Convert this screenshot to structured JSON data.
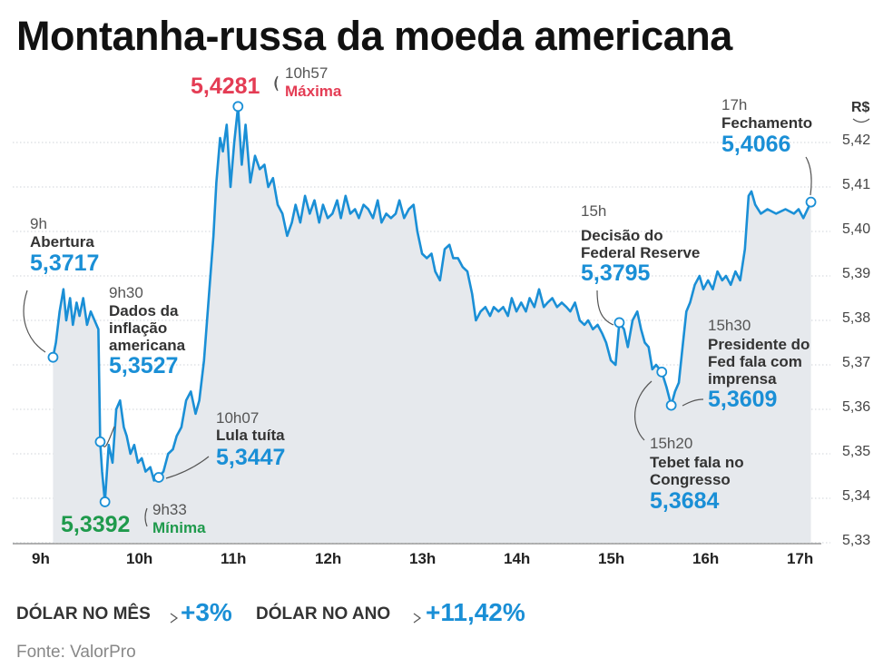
{
  "title": "Montanha-russa da moeda americana",
  "colors": {
    "line": "#1a8fd6",
    "fill": "#e6e9ed",
    "max": "#e43c54",
    "min": "#1f9a4c",
    "grid": "#cfd3d8"
  },
  "chart_data": {
    "type": "line",
    "title": "Montanha-russa da moeda americana",
    "ylabel": "R$",
    "ylim": [
      5.33,
      5.42
    ],
    "xlim": [
      9,
      17
    ],
    "y_ticks": [
      "5,42",
      "5,41",
      "5,40",
      "5,39",
      "5,38",
      "5,37",
      "5,36",
      "5,35",
      "5,34",
      "5,33"
    ],
    "y_tick_values": [
      5.42,
      5.41,
      5.4,
      5.39,
      5.38,
      5.37,
      5.36,
      5.35,
      5.34,
      5.33
    ],
    "x_ticks": [
      "9h",
      "10h",
      "11h",
      "12h",
      "13h",
      "14h",
      "15h",
      "16h",
      "17h"
    ],
    "x_tick_values": [
      9,
      10,
      11,
      12,
      13,
      14,
      15,
      16,
      17
    ],
    "grid": "horizontal dotted",
    "series": [
      {
        "name": "Dólar",
        "t": [
          9.11,
          9.14,
          9.18,
          9.22,
          9.25,
          9.29,
          9.32,
          9.36,
          9.39,
          9.43,
          9.47,
          9.51,
          9.55,
          9.59,
          9.61,
          9.63,
          9.66,
          9.7,
          9.74,
          9.78,
          9.82,
          9.86,
          9.89,
          9.93,
          9.97,
          10.01,
          10.05,
          10.09,
          10.14,
          10.18,
          10.23,
          10.28,
          10.33,
          10.38,
          10.42,
          10.47,
          10.52,
          10.57,
          10.62,
          10.66,
          10.71,
          10.76,
          10.81,
          10.84,
          10.88,
          10.91,
          10.95,
          10.99,
          11.03,
          11.07,
          11.11,
          11.15,
          11.2,
          11.25,
          11.3,
          11.35,
          11.39,
          11.44,
          11.49,
          11.54,
          11.59,
          11.64,
          11.68,
          11.73,
          11.78,
          11.83,
          11.88,
          11.93,
          11.97,
          12.02,
          12.07,
          12.12,
          12.16,
          12.21,
          12.26,
          12.31,
          12.35,
          12.4,
          12.45,
          12.5,
          12.55,
          12.59,
          12.64,
          12.69,
          12.74,
          12.78,
          12.83,
          12.88,
          12.93,
          12.97,
          13.02,
          13.07,
          13.12,
          13.16,
          13.21,
          13.26,
          13.31,
          13.35,
          13.4,
          13.45,
          13.5,
          13.55,
          13.59,
          13.64,
          13.69,
          13.74,
          13.78,
          13.83,
          13.88,
          13.93,
          13.97,
          14.02,
          14.07,
          14.12,
          14.16,
          14.21,
          14.26,
          14.31,
          14.35,
          14.4,
          14.45,
          14.5,
          14.55,
          14.59,
          14.64,
          14.69,
          14.74,
          14.78,
          14.83,
          14.88,
          14.93,
          14.97,
          15.02,
          15.07,
          15.11,
          15.16,
          15.2,
          15.25,
          15.3,
          15.34,
          15.38,
          15.42,
          15.46,
          15.5,
          15.56,
          15.61,
          15.66,
          15.7,
          15.74,
          15.78,
          15.82,
          15.86,
          15.91,
          15.96,
          16.0,
          16.05,
          16.1,
          16.15,
          16.2,
          16.24,
          16.29,
          16.34,
          16.39,
          16.44,
          16.48,
          16.51,
          16.55,
          16.61,
          16.68,
          16.77,
          16.87,
          16.96,
          17.01,
          17.06,
          17.14
        ],
        "v": [
          5.3717,
          5.375,
          5.382,
          5.387,
          5.38,
          5.385,
          5.379,
          5.384,
          5.381,
          5.385,
          5.379,
          5.382,
          5.38,
          5.378,
          5.3527,
          5.346,
          5.3392,
          5.352,
          5.348,
          5.36,
          5.362,
          5.356,
          5.354,
          5.35,
          5.352,
          5.348,
          5.349,
          5.346,
          5.347,
          5.344,
          5.3447,
          5.346,
          5.35,
          5.351,
          5.354,
          5.356,
          5.362,
          5.364,
          5.359,
          5.362,
          5.371,
          5.385,
          5.399,
          5.411,
          5.421,
          5.418,
          5.424,
          5.41,
          5.42,
          5.4281,
          5.415,
          5.424,
          5.411,
          5.417,
          5.414,
          5.415,
          5.41,
          5.412,
          5.406,
          5.404,
          5.399,
          5.402,
          5.406,
          5.402,
          5.408,
          5.404,
          5.407,
          5.402,
          5.406,
          5.403,
          5.404,
          5.407,
          5.403,
          5.408,
          5.404,
          5.405,
          5.403,
          5.406,
          5.405,
          5.403,
          5.407,
          5.402,
          5.404,
          5.403,
          5.404,
          5.407,
          5.403,
          5.405,
          5.406,
          5.4,
          5.395,
          5.394,
          5.395,
          5.391,
          5.389,
          5.396,
          5.397,
          5.394,
          5.394,
          5.392,
          5.391,
          5.386,
          5.38,
          5.382,
          5.383,
          5.381,
          5.383,
          5.382,
          5.383,
          5.381,
          5.385,
          5.382,
          5.384,
          5.382,
          5.385,
          5.383,
          5.387,
          5.383,
          5.384,
          5.385,
          5.383,
          5.384,
          5.383,
          5.382,
          5.384,
          5.38,
          5.379,
          5.38,
          5.378,
          5.379,
          5.377,
          5.375,
          5.371,
          5.37,
          5.3795,
          5.378,
          5.374,
          5.38,
          5.382,
          5.378,
          5.375,
          5.374,
          5.369,
          5.37,
          5.3684,
          5.365,
          5.3609,
          5.364,
          5.366,
          5.374,
          5.382,
          5.384,
          5.388,
          5.39,
          5.387,
          5.389,
          5.387,
          5.391,
          5.389,
          5.39,
          5.388,
          5.391,
          5.389,
          5.396,
          5.408,
          5.409,
          5.406,
          5.404,
          5.405,
          5.404,
          5.405,
          5.404,
          5.405,
          5.403,
          5.4066
        ]
      }
    ],
    "markers": [
      {
        "t": 9.11,
        "v": 5.3717
      },
      {
        "t": 9.61,
        "v": 5.3527
      },
      {
        "t": 9.66,
        "v": 5.3392
      },
      {
        "t": 10.23,
        "v": 5.3447
      },
      {
        "t": 11.07,
        "v": 5.4281
      },
      {
        "t": 15.11,
        "v": 5.3795
      },
      {
        "t": 15.56,
        "v": 5.3684
      },
      {
        "t": 15.66,
        "v": 5.3609
      },
      {
        "t": 17.14,
        "v": 5.4066
      }
    ]
  },
  "annotations": {
    "open": {
      "time": "9h",
      "event": "Abertura",
      "value": "5,3717"
    },
    "inflation": {
      "time": "9h30",
      "event_lines": [
        "Dados da",
        "inflação",
        "americana"
      ],
      "value": "5,3527"
    },
    "max": {
      "time": "10h57",
      "label": "Máxima",
      "value": "5,4281"
    },
    "min": {
      "time": "9h33",
      "label": "Mínima",
      "value": "5,3392"
    },
    "lula": {
      "time": "10h07",
      "event": "Lula tuíta",
      "value": "5,3447"
    },
    "fed": {
      "time": "15h",
      "event_lines": [
        "Decisão do",
        "Federal Reserve"
      ],
      "value": "5,3795"
    },
    "close": {
      "time": "17h",
      "event": "Fechamento",
      "value": "5,4066"
    },
    "powell": {
      "time": "15h30",
      "event_lines": [
        "Presidente do",
        "Fed fala com",
        "imprensa"
      ],
      "value": "5,3609"
    },
    "tebet": {
      "time": "15h20",
      "event_lines": [
        "Tebet fala no",
        "Congresso"
      ],
      "value": "5,3684"
    }
  },
  "footer": {
    "month_label": "DÓLAR NO MÊS",
    "month_value": "+3%",
    "year_label": "DÓLAR NO ANO",
    "year_value": "+11,42%",
    "source": "Fonte: ValorPro"
  }
}
